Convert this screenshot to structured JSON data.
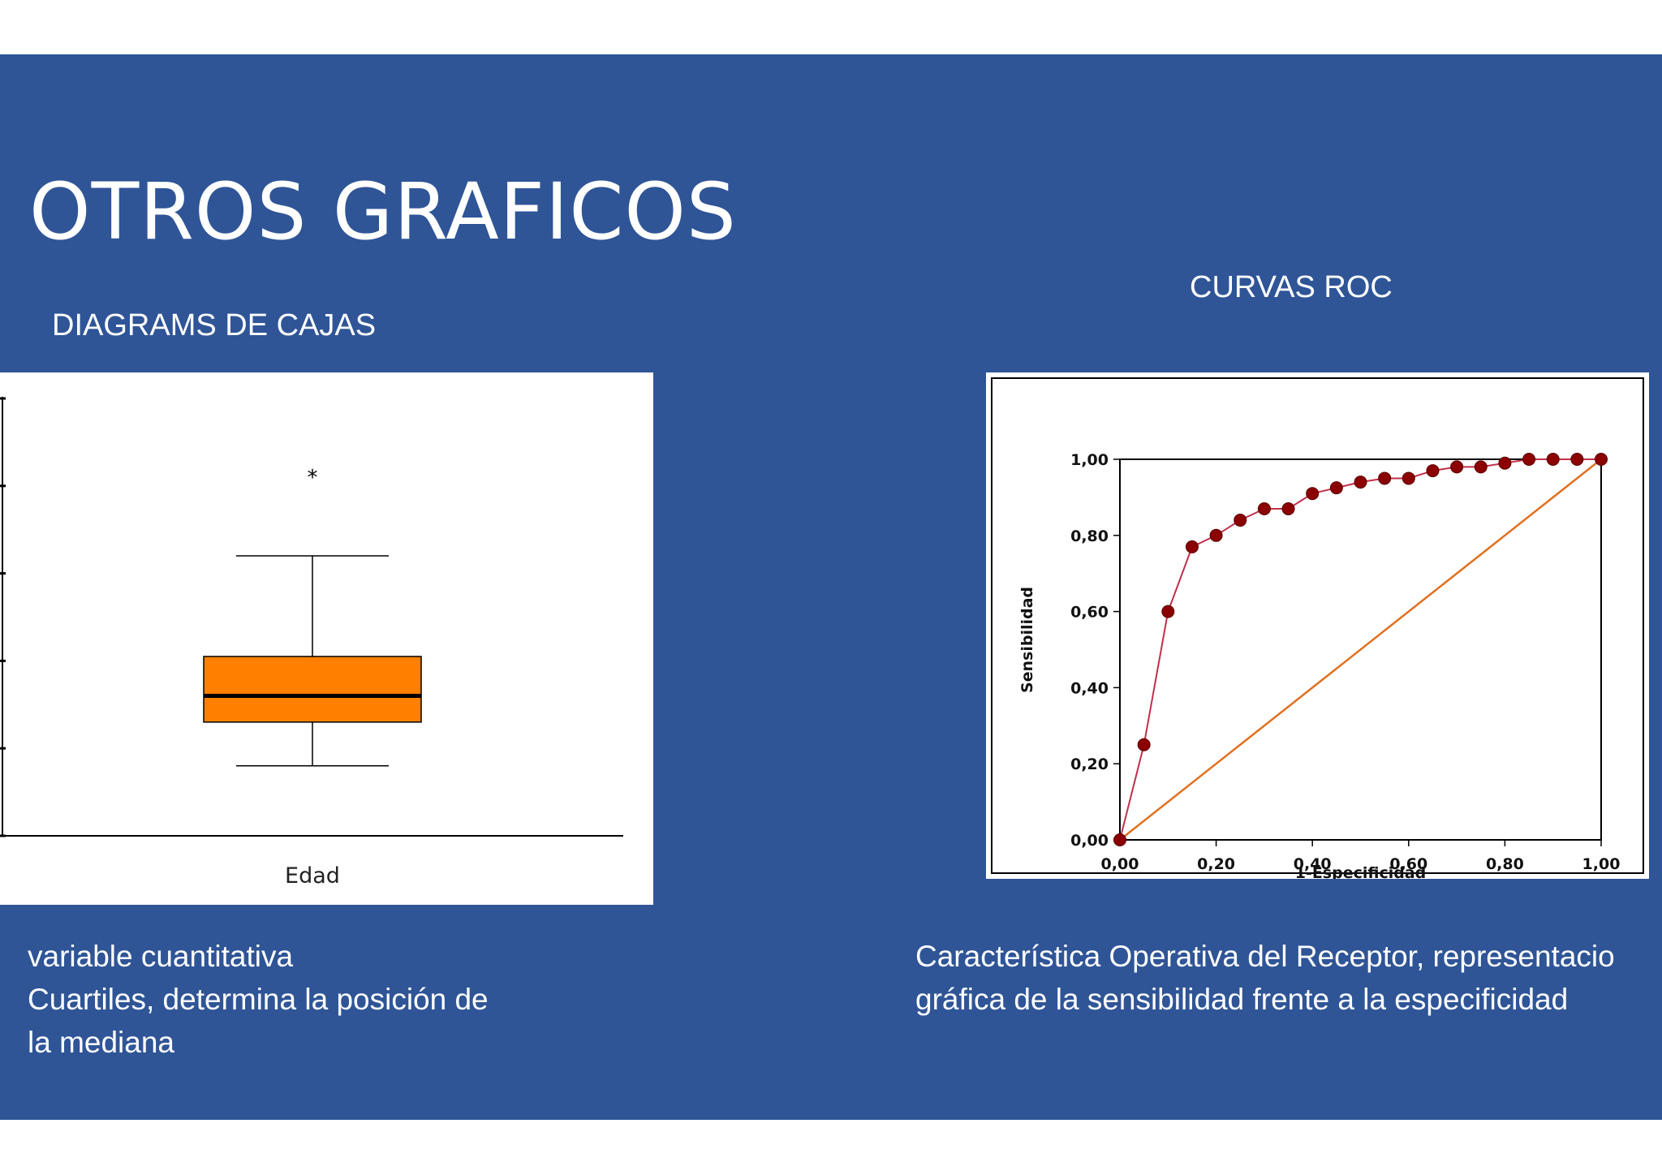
{
  "slide": {
    "title": "OTROS GRAFICOS",
    "background_color": "#2f5597",
    "left_heading": "DIAGRAMS DE CAJAS",
    "right_heading": "CURVAS ROC",
    "left_caption_lines": [
      "variable cuantitativa",
      "Cuartiles, determina la posición de",
      "la  mediana"
    ],
    "right_caption_lines": [
      "Característica Operativa del Receptor,  representacio",
      "gráfica de la sensibilidad frente a la especificidad"
    ]
  },
  "chart_data": [
    {
      "type": "box",
      "categories": [
        "Edad"
      ],
      "box": {
        "whisker_low": 0.8,
        "q1": 1.3,
        "median": 1.6,
        "q3": 2.05,
        "whisker_high": 3.2,
        "outliers": [
          4.1
        ]
      },
      "ylim": [
        0,
        5
      ],
      "box_color": "#ff8000"
    },
    {
      "type": "line",
      "xlabel": "1-Especificidad",
      "ylabel": "Sensibilidad",
      "xlim": [
        0,
        1
      ],
      "ylim": [
        0,
        1
      ],
      "x_ticks": [
        "0,00",
        "0,20",
        "0,40",
        "0,60",
        "0,80",
        "1,00"
      ],
      "y_ticks": [
        "0,00",
        "0,20",
        "0,40",
        "0,60",
        "0,80",
        "1,00"
      ],
      "series": [
        {
          "line_color": "#c0304a",
          "marker_color": "#8b0000",
          "x": [
            0,
            0.05,
            0.1,
            0.15,
            0.2,
            0.25,
            0.3,
            0.35,
            0.4,
            0.45,
            0.5,
            0.55,
            0.6,
            0.65,
            0.7,
            0.75,
            0.8,
            0.85,
            0.9,
            0.95,
            1.0
          ],
          "y": [
            0,
            0.25,
            0.6,
            0.77,
            0.8,
            0.84,
            0.87,
            0.87,
            0.91,
            0.925,
            0.94,
            0.95,
            0.95,
            0.97,
            0.98,
            0.98,
            0.99,
            1.0,
            1.0,
            1.0,
            1.0
          ]
        },
        {
          "line_color": "#e07020",
          "x": [
            0,
            1
          ],
          "y": [
            0,
            1
          ]
        }
      ]
    }
  ]
}
